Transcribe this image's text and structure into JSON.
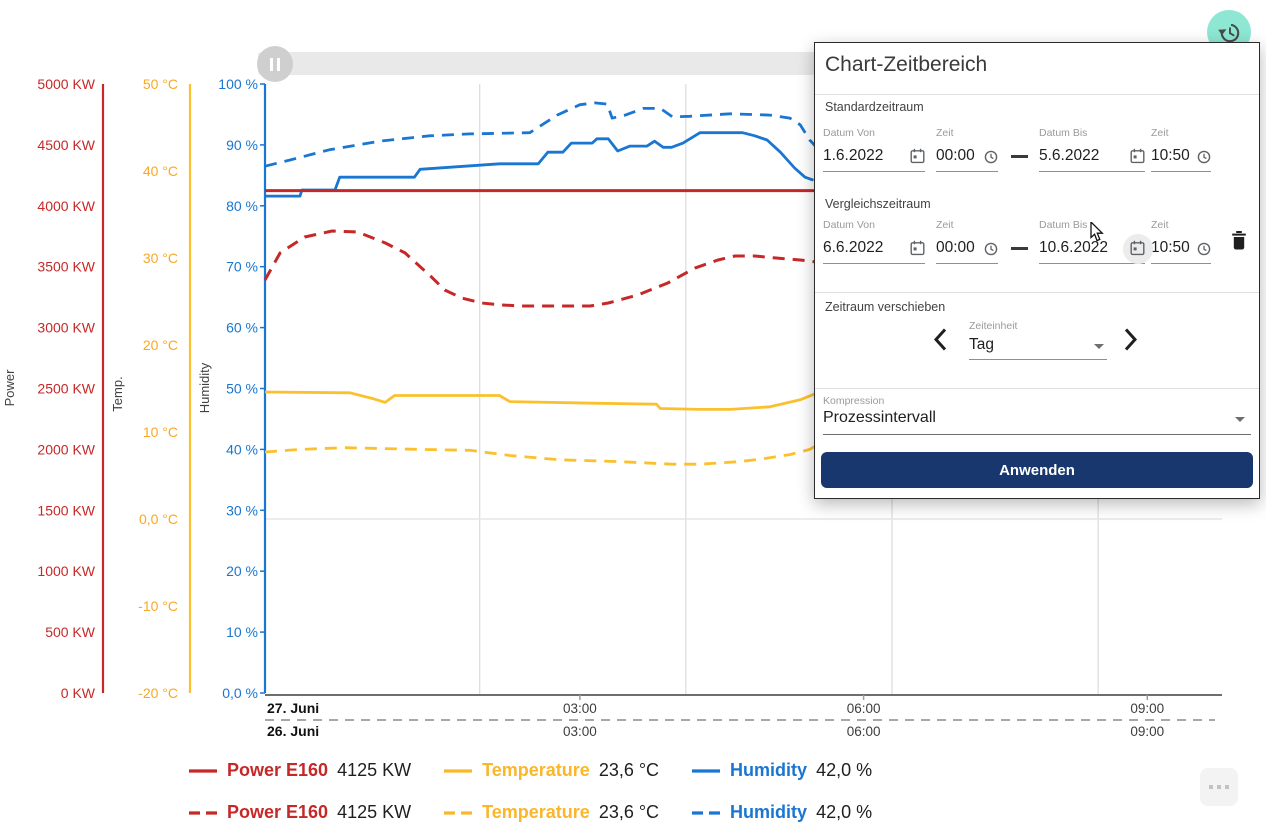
{
  "toolbar": {
    "history_icon": "history-clock-ccw",
    "slider_icon": "pause"
  },
  "dialog": {
    "title": "Chart-Zeitbereich",
    "standard": {
      "section_label": "Standardzeitraum",
      "from_date_label": "Datum Von",
      "from_date": "1.6.2022",
      "from_time_label": "Zeit",
      "from_time": "00:00",
      "to_date_label": "Datum Bis",
      "to_date": "5.6.2022",
      "to_time_label": "Zeit",
      "to_time": "10:50"
    },
    "compare": {
      "section_label": "Vergleichszeitraum",
      "from_date_label": "Datum Von",
      "from_date": "6.6.2022",
      "from_time_label": "Zeit",
      "from_time": "00:00",
      "to_date_label": "Datum Bis",
      "to_date": "10.6.2022",
      "to_time_label": "Zeit",
      "to_time": "10:50"
    },
    "shift": {
      "section_label": "Zeitraum verschieben",
      "unit_label": "Zeiteinheit",
      "unit_value": "Tag"
    },
    "compression": {
      "label": "Kompression",
      "value": "Prozessintervall"
    },
    "apply_label": "Anwenden"
  },
  "icons": {
    "calendar": "calendar-icon",
    "clock": "clock-icon",
    "trash": "trash-icon",
    "chevron_left": "chevron-left-icon",
    "chevron_right": "chevron-right-icon",
    "caret_down": "caret-down-icon",
    "more": "more-options-icon"
  },
  "legend": {
    "rows": [
      {
        "style": "solid",
        "items": [
          {
            "name": "Power E160",
            "value": "4125 KW",
            "color": "#c62828"
          },
          {
            "name": "Temperature",
            "value": "23,6 °C",
            "color": "#fbb62a"
          },
          {
            "name": "Humidity",
            "value": "42,0 %",
            "color": "#1976d2"
          }
        ]
      },
      {
        "style": "dashed",
        "items": [
          {
            "name": "Power E160",
            "value": "4125 KW",
            "color": "#c62828"
          },
          {
            "name": "Temperature",
            "value": "23,6 °C",
            "color": "#fbb62a"
          },
          {
            "name": "Humidity",
            "value": "42,0 %",
            "color": "#1976d2"
          }
        ]
      }
    ]
  },
  "chart_data": {
    "type": "line",
    "x_axis": {
      "unit": "hours_of_day",
      "domain_hours": [
        -0.33,
        9.79
      ],
      "ticks": [
        [
          3,
          "03:00"
        ],
        [
          6,
          "06:00"
        ],
        [
          9,
          "09:00"
        ]
      ],
      "day_label_top": "27. Juni",
      "day_label_bottom": "26. Juni",
      "grid_hours": [
        1.94,
        4.12,
        6.3,
        8.48
      ]
    },
    "horizontal_grid": {
      "axis": "temp",
      "values": [
        0
      ]
    },
    "y_axes": [
      {
        "id": "power",
        "title": "Power",
        "color": "#c62828",
        "label_color": "#c62828",
        "min": 0,
        "max": 5000,
        "ticks": [
          [
            5000,
            "5000 KW"
          ],
          [
            4500,
            "4500 KW"
          ],
          [
            4000,
            "4000 KW"
          ],
          [
            3500,
            "3500 KW"
          ],
          [
            3000,
            "3000 KW"
          ],
          [
            2500,
            "2500 KW"
          ],
          [
            2000,
            "2000 KW"
          ],
          [
            1500,
            "1500 KW"
          ],
          [
            1000,
            "1000 KW"
          ],
          [
            500,
            "500 KW"
          ],
          [
            0,
            "0 KW"
          ]
        ]
      },
      {
        "id": "temp",
        "title": "Temp.",
        "color": "#fbc02d",
        "label_color": "#f9a825",
        "min": -20,
        "max": 50,
        "ticks": [
          [
            50,
            "50 °C"
          ],
          [
            40,
            "40 °C"
          ],
          [
            30,
            "30 °C"
          ],
          [
            20,
            "20 °C"
          ],
          [
            10,
            "10 °C"
          ],
          [
            0,
            "0,0 °C"
          ],
          [
            -10,
            "-10 °C"
          ],
          [
            -20,
            "-20 °C"
          ]
        ]
      },
      {
        "id": "humidity",
        "title": "Humidity",
        "color": "#1976d2",
        "label_color": "#1976d2",
        "min": 0,
        "max": 100,
        "ticks": [
          [
            100,
            "100 %"
          ],
          [
            90,
            "90 %"
          ],
          [
            80,
            "80 %"
          ],
          [
            70,
            "70 %"
          ],
          [
            60,
            "60 %"
          ],
          [
            50,
            "50 %"
          ],
          [
            40,
            "40 %"
          ],
          [
            30,
            "30 %"
          ],
          [
            20,
            "20 %"
          ],
          [
            10,
            "10 %"
          ],
          [
            0,
            "0,0 %"
          ]
        ]
      }
    ],
    "series": [
      {
        "name": "Temperature",
        "axis": "temp",
        "style": "solid",
        "color": "#fbc02d",
        "points": [
          [
            -0.33,
            14.6
          ],
          [
            0.57,
            14.5
          ],
          [
            0.82,
            13.8
          ],
          [
            0.94,
            13.4
          ],
          [
            1.04,
            14.2
          ],
          [
            2.15,
            14.2
          ],
          [
            2.26,
            13.5
          ],
          [
            3.21,
            13.3
          ],
          [
            3.81,
            13.2
          ],
          [
            3.85,
            12.7
          ],
          [
            4.27,
            12.6
          ],
          [
            4.59,
            12.6
          ],
          [
            5.01,
            12.9
          ],
          [
            5.33,
            13.7
          ],
          [
            5.49,
            14.4
          ]
        ]
      },
      {
        "name": "Temperature (Vergleich)",
        "axis": "temp",
        "style": "dashed",
        "color": "#fbc02d",
        "points": [
          [
            -0.33,
            7.7
          ],
          [
            0.04,
            8.0
          ],
          [
            0.51,
            8.2
          ],
          [
            1.31,
            8.0
          ],
          [
            1.84,
            7.9
          ],
          [
            2.26,
            7.3
          ],
          [
            2.79,
            6.8
          ],
          [
            3.42,
            6.6
          ],
          [
            3.97,
            6.3
          ],
          [
            4.27,
            6.3
          ],
          [
            4.69,
            6.6
          ],
          [
            4.92,
            6.9
          ],
          [
            5.22,
            7.4
          ],
          [
            5.43,
            8.0
          ],
          [
            5.49,
            8.4
          ]
        ]
      },
      {
        "name": "Humidity (Vergleich)",
        "axis": "humidity",
        "style": "dashed",
        "color": "#1976d2",
        "points": [
          [
            -0.33,
            86.5
          ],
          [
            -0.07,
            87.5
          ],
          [
            0.35,
            89.2
          ],
          [
            0.88,
            90.6
          ],
          [
            1.41,
            91.5
          ],
          [
            1.84,
            91.8
          ],
          [
            2.47,
            92.0
          ],
          [
            2.76,
            94.9
          ],
          [
            3.0,
            96.6
          ],
          [
            3.16,
            96.9
          ],
          [
            3.29,
            96.7
          ],
          [
            3.34,
            94.4
          ],
          [
            3.48,
            94.9
          ],
          [
            3.67,
            96.0
          ],
          [
            3.85,
            96.0
          ],
          [
            3.98,
            94.6
          ],
          [
            4.16,
            94.7
          ],
          [
            4.59,
            95.1
          ],
          [
            5.01,
            94.9
          ],
          [
            5.22,
            94.4
          ],
          [
            5.33,
            93.3
          ],
          [
            5.43,
            90.8
          ],
          [
            5.49,
            89.8
          ]
        ]
      },
      {
        "name": "Humidity",
        "axis": "humidity",
        "style": "solid",
        "color": "#1976d2",
        "points": [
          [
            -0.33,
            81.6
          ],
          [
            0.04,
            81.6
          ],
          [
            0.06,
            82.6
          ],
          [
            0.41,
            82.6
          ],
          [
            0.46,
            84.7
          ],
          [
            1.25,
            84.7
          ],
          [
            1.31,
            86.0
          ],
          [
            2.15,
            86.9
          ],
          [
            2.56,
            86.9
          ],
          [
            2.66,
            88.8
          ],
          [
            2.82,
            88.8
          ],
          [
            2.91,
            90.3
          ],
          [
            3.13,
            90.3
          ],
          [
            3.18,
            91.0
          ],
          [
            3.3,
            91.0
          ],
          [
            3.4,
            89.0
          ],
          [
            3.53,
            89.8
          ],
          [
            3.71,
            89.8
          ],
          [
            3.79,
            90.6
          ],
          [
            3.88,
            89.6
          ],
          [
            3.97,
            89.6
          ],
          [
            4.09,
            90.3
          ],
          [
            4.27,
            92.0
          ],
          [
            4.72,
            92.0
          ],
          [
            4.85,
            91.5
          ],
          [
            4.98,
            90.8
          ],
          [
            5.12,
            88.8
          ],
          [
            5.27,
            86.2
          ],
          [
            5.38,
            84.7
          ],
          [
            5.47,
            84.2
          ]
        ]
      },
      {
        "name": "Power E160 (Vergleich)",
        "axis": "power",
        "style": "dashed",
        "color": "#c62828",
        "points": [
          [
            -0.33,
            3391
          ],
          [
            -0.17,
            3613
          ],
          [
            0.09,
            3744
          ],
          [
            0.38,
            3793
          ],
          [
            0.65,
            3785
          ],
          [
            0.94,
            3695
          ],
          [
            1.15,
            3613
          ],
          [
            1.43,
            3416
          ],
          [
            1.57,
            3309
          ],
          [
            1.75,
            3243
          ],
          [
            1.96,
            3202
          ],
          [
            2.17,
            3186
          ],
          [
            2.36,
            3177
          ],
          [
            3.11,
            3177
          ],
          [
            3.3,
            3202
          ],
          [
            3.61,
            3268
          ],
          [
            3.93,
            3366
          ],
          [
            4.22,
            3490
          ],
          [
            4.46,
            3555
          ],
          [
            4.64,
            3588
          ],
          [
            4.85,
            3588
          ],
          [
            5.06,
            3572
          ],
          [
            5.33,
            3555
          ],
          [
            5.49,
            3539
          ]
        ]
      },
      {
        "name": "Power E160",
        "axis": "power",
        "style": "solid",
        "color": "#c62828",
        "points": [
          [
            -0.33,
            4125
          ],
          [
            9.79,
            4125
          ]
        ]
      }
    ]
  }
}
